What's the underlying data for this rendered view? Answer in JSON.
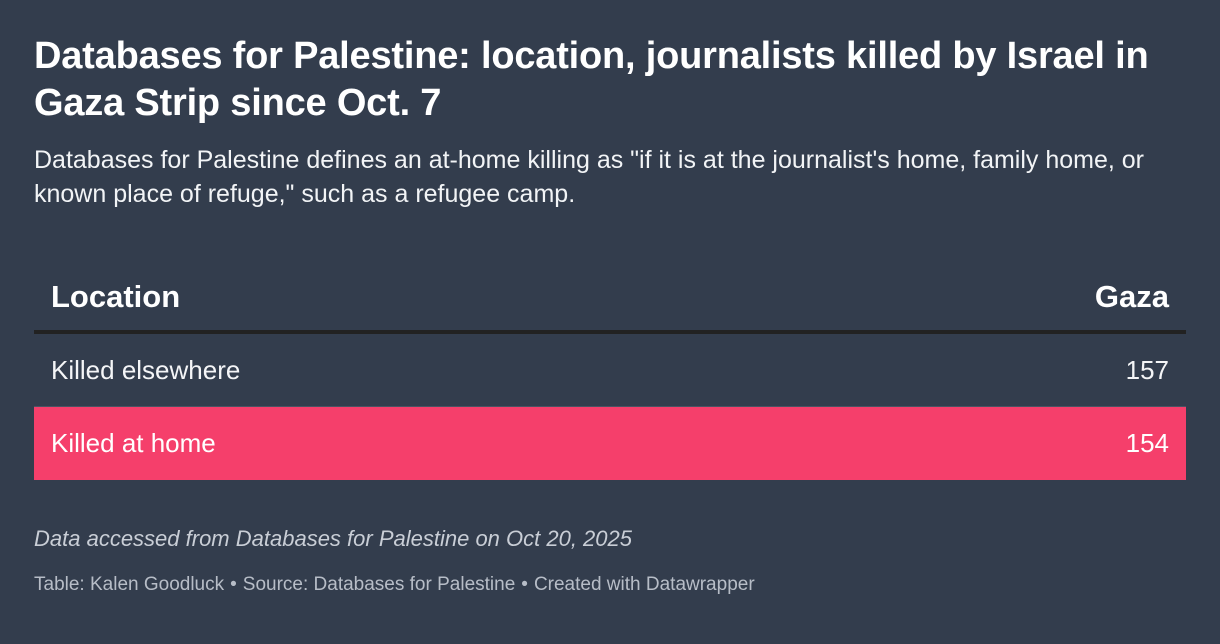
{
  "title": "Databases for Palestine: location, journalists killed by Israel in Gaza Strip since Oct. 7",
  "subtitle": "Databases for Palestine defines an at-home killing as \"if it is at the journalist's home, family home, or known place of refuge,\" such as a refugee camp.",
  "note": "Data accessed from Databases for Palestine on Oct 20, 2025",
  "footer": {
    "credit": "Table: Kalen Goodluck",
    "source": "Source: Databases for Palestine",
    "tool": "Created with Datawrapper",
    "separator": "•"
  },
  "colors": {
    "background": "#333d4d",
    "highlight_row": "#f53f6b"
  },
  "chart_data": {
    "type": "table",
    "columns": [
      "Location",
      "Gaza"
    ],
    "rows": [
      {
        "label": "Killed elsewhere",
        "value": "157",
        "highlight": false
      },
      {
        "label": "Killed at home",
        "value": "154",
        "highlight": true
      }
    ]
  }
}
